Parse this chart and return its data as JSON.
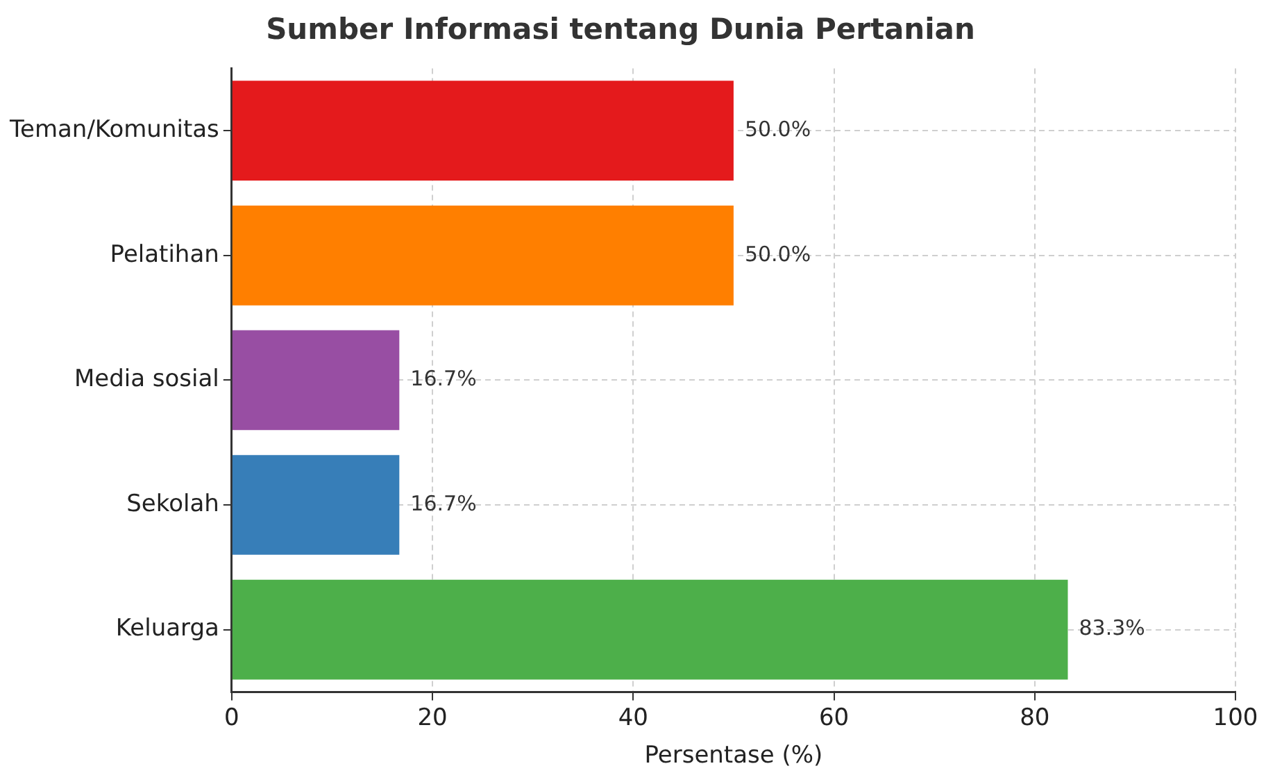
{
  "chart_data": {
    "type": "bar",
    "orientation": "horizontal",
    "title": "Sumber Informasi tentang Dunia Pertanian",
    "xlabel": "Persentase (%)",
    "categories": [
      "Teman/Komunitas",
      "Pelatihan",
      "Media sosial",
      "Sekolah",
      "Keluarga"
    ],
    "values": [
      50.0,
      50.0,
      16.7,
      16.7,
      83.3
    ],
    "value_labels": [
      "50.0%",
      "50.0%",
      "16.7%",
      "16.7%",
      "83.3%"
    ],
    "colors": [
      "#e41a1c",
      "#ff7f00",
      "#984ea3",
      "#377eb8",
      "#4daf4a"
    ],
    "xlim": [
      0,
      100
    ],
    "xticks": [
      0,
      20,
      40,
      60,
      80,
      100
    ],
    "grid": true,
    "legend": false
  }
}
